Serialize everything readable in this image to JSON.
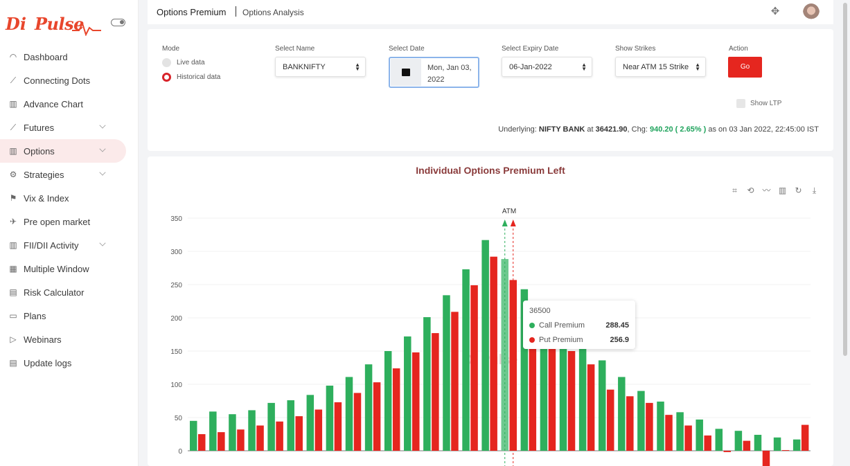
{
  "app": {
    "logo_prefix": "Di",
    "logo_text": "Pulse"
  },
  "sidebar": {
    "items": [
      {
        "label": "Dashboard",
        "icon": "dashboard-icon",
        "glyph": "◠",
        "chevron": false,
        "active": false
      },
      {
        "label": "Connecting Dots",
        "icon": "line-chart-icon",
        "glyph": "⟋",
        "chevron": false,
        "active": false
      },
      {
        "label": "Advance Chart",
        "icon": "bar-chart-icon",
        "glyph": "▥",
        "chevron": false,
        "active": false
      },
      {
        "label": "Futures",
        "icon": "trend-chart-icon",
        "glyph": "⟋",
        "chevron": true,
        "active": false
      },
      {
        "label": "Options",
        "icon": "options-chart-icon",
        "glyph": "▥",
        "chevron": true,
        "active": true
      },
      {
        "label": "Strategies",
        "icon": "gear-icon",
        "glyph": "⚙",
        "chevron": true,
        "active": false
      },
      {
        "label": "Vix & Index",
        "icon": "flag-icon",
        "glyph": "⚑",
        "chevron": false,
        "active": false
      },
      {
        "label": "Pre open market",
        "icon": "rocket-icon",
        "glyph": "✈",
        "chevron": false,
        "active": false
      },
      {
        "label": "FII/DII Activity",
        "icon": "activity-chart-icon",
        "glyph": "▥",
        "chevron": true,
        "active": false
      },
      {
        "label": "Multiple Window",
        "icon": "grid-icon",
        "glyph": "▦",
        "chevron": false,
        "active": false
      },
      {
        "label": "Risk Calculator",
        "icon": "calculator-icon",
        "glyph": "▤",
        "chevron": false,
        "active": false
      },
      {
        "label": "Plans",
        "icon": "plans-icon",
        "glyph": "▭",
        "chevron": false,
        "active": false
      },
      {
        "label": "Webinars",
        "icon": "video-icon",
        "glyph": "▷",
        "chevron": false,
        "active": false
      },
      {
        "label": "Update logs",
        "icon": "document-icon",
        "glyph": "▤",
        "chevron": false,
        "active": false
      }
    ]
  },
  "header": {
    "title": "Options Premium",
    "subtitle": "Options Analysis"
  },
  "filters": {
    "mode_label": "Mode",
    "mode_live": "Live data",
    "mode_historical": "Historical data",
    "name_label": "Select Name",
    "name_value": "BANKNIFTY",
    "date_label": "Select Date",
    "date_line1": "Mon, Jan 03,",
    "date_line2": "2022",
    "expiry_label": "Select Expiry Date",
    "expiry_value": "06-Jan-2022",
    "strikes_label": "Show Strikes",
    "strikes_value": "Near ATM 15 Strike",
    "action_label": "Action",
    "go_label": "Go",
    "show_ltp_label": "Show LTP"
  },
  "underlying": {
    "prefix": "Underlying:",
    "name": "NIFTY BANK",
    "at": "at",
    "price": "36421.90",
    "chg_label": ", Chg:",
    "chg_value": "940.20 ( 2.65% )",
    "as_on": "as on 03 Jan 2022, 22:45:00 IST"
  },
  "tooltip": {
    "strike": "36500",
    "call_label": "Call Premium",
    "call_value": "288.45",
    "put_label": "Put Premium",
    "put_value": "256.9"
  },
  "colors": {
    "call": "#2eaf5d",
    "put": "#e5261f",
    "accent": "#e5261f"
  },
  "chart_data": {
    "type": "bar",
    "title": "Individual Options Premium Left",
    "atm_label": "ATM",
    "atm_index": 16,
    "watermark": "Di Pulse",
    "ylim": [
      0,
      350
    ],
    "yticks": [
      0,
      50,
      100,
      150,
      200,
      250,
      300,
      350
    ],
    "series": [
      {
        "name": "Call Premium",
        "color": "#2eaf5d",
        "values": [
          45,
          59,
          55,
          61,
          72,
          76,
          84,
          98,
          111,
          130,
          150,
          172,
          201,
          234,
          273,
          317,
          288.45,
          243,
          192,
          168,
          160,
          136,
          111,
          90,
          74,
          58,
          47,
          33,
          30,
          24,
          20,
          17
        ]
      },
      {
        "name": "Put Premium",
        "color": "#e5261f",
        "values": [
          25,
          28,
          32,
          38,
          44,
          52,
          62,
          73,
          87,
          103,
          124,
          148,
          177,
          209,
          249,
          292,
          256.9,
          220,
          180,
          150,
          130,
          92,
          82,
          72,
          54,
          38,
          23,
          -2,
          15,
          -23,
          1,
          39
        ]
      }
    ]
  }
}
